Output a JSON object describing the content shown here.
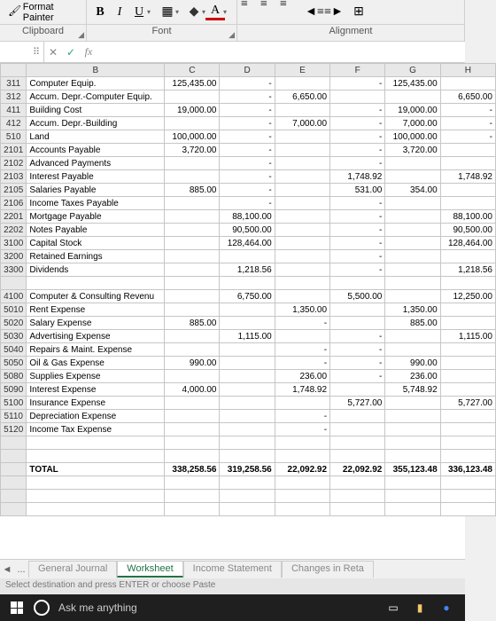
{
  "ribbon": {
    "format_painter": "Format Painter",
    "clipboard_label": "Clipboard",
    "font_label": "Font",
    "alignment_label": "Alignment",
    "bold": "B",
    "italic": "I",
    "underline": "U"
  },
  "formula_bar": {
    "cancel": "✕",
    "enter": "✓",
    "fx": "fx"
  },
  "columns": [
    "B",
    "C",
    "D",
    "E",
    "F",
    "G",
    "H"
  ],
  "rows": [
    {
      "n": "311",
      "b": "Computer Equip.",
      "c": "125,435.00",
      "d": "-",
      "e": "",
      "f": "-",
      "g": "125,435.00",
      "h": ""
    },
    {
      "n": "312",
      "b": "Accum. Depr.-Computer Equip.",
      "c": "",
      "d": "-",
      "e": "6,650.00",
      "f": "",
      "g": "",
      "h": "6,650.00"
    },
    {
      "n": "411",
      "b": "Building Cost",
      "c": "19,000.00",
      "d": "-",
      "e": "",
      "f": "-",
      "g": "19,000.00",
      "h": "-"
    },
    {
      "n": "412",
      "b": "Accum. Depr.-Building",
      "c": "",
      "d": "-",
      "e": "7,000.00",
      "f": "-",
      "g": "7,000.00",
      "h": "-"
    },
    {
      "n": "510",
      "b": "Land",
      "c": "100,000.00",
      "d": "-",
      "e": "",
      "f": "-",
      "g": "100,000.00",
      "h": "-"
    },
    {
      "n": "2101",
      "b": "Accounts Payable",
      "c": "3,720.00",
      "d": "-",
      "e": "",
      "f": "-",
      "g": "3,720.00",
      "h": ""
    },
    {
      "n": "2102",
      "b": "Advanced Payments",
      "c": "",
      "d": "-",
      "e": "",
      "f": "-",
      "g": "",
      "h": ""
    },
    {
      "n": "2103",
      "b": "Interest Payable",
      "c": "",
      "d": "-",
      "e": "",
      "f": "1,748.92",
      "g": "",
      "h": "1,748.92"
    },
    {
      "n": "2105",
      "b": "Salaries Payable",
      "c": "885.00",
      "d": "-",
      "e": "",
      "f": "531.00",
      "g": "354.00",
      "h": ""
    },
    {
      "n": "2106",
      "b": "Income Taxes Payable",
      "c": "",
      "d": "-",
      "e": "",
      "f": "-",
      "g": "",
      "h": ""
    },
    {
      "n": "2201",
      "b": "Mortgage Payable",
      "c": "",
      "d": "88,100.00",
      "e": "",
      "f": "-",
      "g": "",
      "h": "88,100.00"
    },
    {
      "n": "2202",
      "b": "Notes Payable",
      "c": "",
      "d": "90,500.00",
      "e": "",
      "f": "-",
      "g": "",
      "h": "90,500.00"
    },
    {
      "n": "3100",
      "b": "Capital Stock",
      "c": "",
      "d": "128,464.00",
      "e": "",
      "f": "-",
      "g": "",
      "h": "128,464.00"
    },
    {
      "n": "3200",
      "b": "Retained Earnings",
      "c": "",
      "d": "",
      "e": "",
      "f": "-",
      "g": "",
      "h": ""
    },
    {
      "n": "3300",
      "b": "Dividends",
      "c": "",
      "d": "1,218.56",
      "e": "",
      "f": "-",
      "g": "",
      "h": "1,218.56"
    },
    {
      "n": "",
      "b": "",
      "c": "",
      "d": "",
      "e": "",
      "f": "",
      "g": "",
      "h": ""
    },
    {
      "n": "4100",
      "b": "Computer & Consulting Revenu",
      "c": "",
      "d": "6,750.00",
      "e": "",
      "f": "5,500.00",
      "g": "",
      "h": "12,250.00"
    },
    {
      "n": "5010",
      "b": "Rent Expense",
      "c": "",
      "d": "",
      "e": "1,350.00",
      "f": "",
      "g": "1,350.00",
      "h": ""
    },
    {
      "n": "5020",
      "b": "Salary Expense",
      "c": "885.00",
      "d": "",
      "e": "-",
      "f": "",
      "g": "885.00",
      "h": ""
    },
    {
      "n": "5030",
      "b": "Advertising Expense",
      "c": "",
      "d": "1,115.00",
      "e": "",
      "f": "-",
      "g": "",
      "h": "1,115.00"
    },
    {
      "n": "5040",
      "b": "Repairs & Maint. Expense",
      "c": "",
      "d": "",
      "e": "-",
      "f": "-",
      "g": "",
      "h": ""
    },
    {
      "n": "5050",
      "b": "Oil & Gas Expense",
      "c": "990.00",
      "d": "",
      "e": "-",
      "f": "-",
      "g": "990.00",
      "h": ""
    },
    {
      "n": "5080",
      "b": "Supplies Expense",
      "c": "",
      "d": "",
      "e": "236.00",
      "f": "-",
      "g": "236.00",
      "h": ""
    },
    {
      "n": "5090",
      "b": "Interest Expense",
      "c": "4,000.00",
      "d": "",
      "e": "1,748.92",
      "f": "",
      "g": "5,748.92",
      "h": ""
    },
    {
      "n": "5100",
      "b": "Insurance Expense",
      "c": "",
      "d": "",
      "e": "",
      "f": "5,727.00",
      "g": "",
      "h": "5,727.00"
    },
    {
      "n": "5110",
      "b": "Depreciation Expense",
      "c": "",
      "d": "",
      "e": "-",
      "f": "",
      "g": "",
      "h": ""
    },
    {
      "n": "5120",
      "b": "Income Tax Expense",
      "c": "",
      "d": "",
      "e": "-",
      "f": "",
      "g": "",
      "h": ""
    },
    {
      "n": "",
      "b": "",
      "c": "",
      "d": "",
      "e": "",
      "f": "",
      "g": "",
      "h": ""
    },
    {
      "n": "",
      "b": "",
      "c": "",
      "d": "",
      "e": "",
      "f": "",
      "g": "",
      "h": ""
    },
    {
      "n": "",
      "b": "TOTAL",
      "c": "338,258.56",
      "d": "319,258.56",
      "e": "22,092.92",
      "f": "22,092.92",
      "g": "355,123.48",
      "h": "336,123.48",
      "total": true
    },
    {
      "n": "",
      "b": "",
      "c": "",
      "d": "",
      "e": "",
      "f": "",
      "g": "",
      "h": ""
    },
    {
      "n": "",
      "b": "",
      "c": "",
      "d": "",
      "e": "",
      "f": "",
      "g": "",
      "h": ""
    },
    {
      "n": "",
      "b": "",
      "c": "",
      "d": "",
      "e": "",
      "f": "",
      "g": "",
      "h": ""
    }
  ],
  "tabs": {
    "items": [
      "General Journal",
      "Worksheet",
      "Income Statement",
      "Changes in Reta"
    ],
    "active_index": 1,
    "nav_prev": "◄",
    "nav_ellipsis": "..."
  },
  "statusbar": {
    "text": "Select destination and press ENTER or choose Paste"
  },
  "taskbar": {
    "cortana": "Ask me anything"
  }
}
